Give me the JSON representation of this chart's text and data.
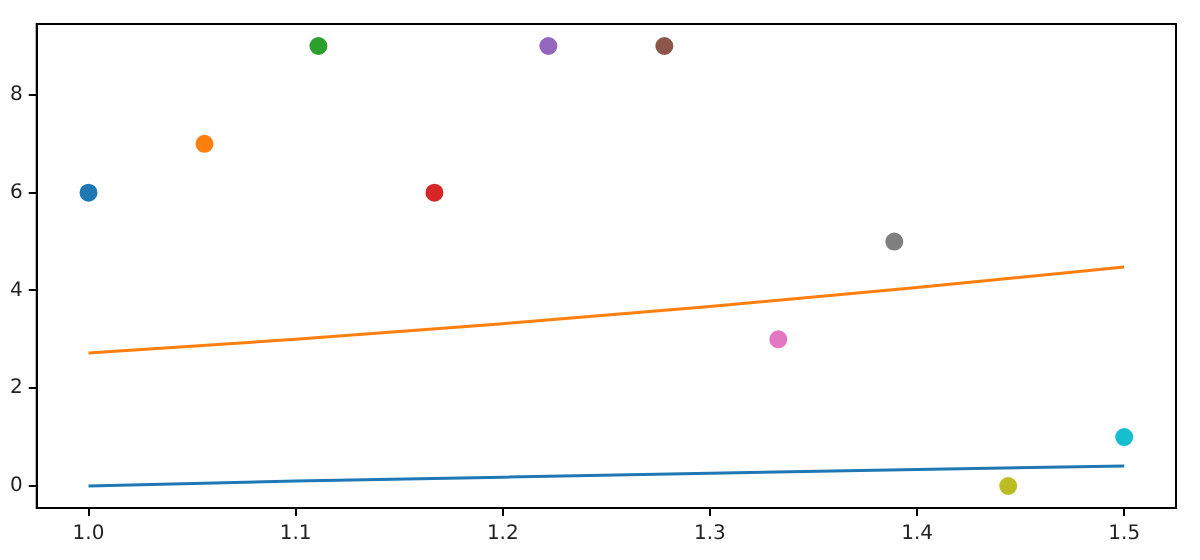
{
  "chart_data": {
    "type": "scatter",
    "xlim": [
      0.975,
      1.525
    ],
    "ylim": [
      -0.45,
      9.45
    ],
    "xticks": [
      {
        "value": 1,
        "label": "1.0"
      },
      {
        "value": 1.1,
        "label": "1.1"
      },
      {
        "value": 1.2,
        "label": "1.2"
      },
      {
        "value": 1.3,
        "label": "1.3"
      },
      {
        "value": 1.4,
        "label": "1.4"
      },
      {
        "value": 1.5,
        "label": "1.5"
      }
    ],
    "yticks": [
      0,
      2,
      4,
      6,
      8
    ],
    "grid": false,
    "legend": false,
    "marker": "circle",
    "series": [
      {
        "type": "line",
        "marker": "none",
        "color": "#1f77b4",
        "x": [
          1,
          1.1,
          1.2,
          1.3,
          1.4,
          1.5
        ],
        "values": [
          0,
          0.1,
          0.18,
          0.26,
          0.34,
          0.41
        ]
      },
      {
        "type": "line",
        "marker": "none",
        "color": "#ff7f0e",
        "x": [
          1,
          1.1,
          1.2,
          1.3,
          1.4,
          1.5
        ],
        "values": [
          2.72,
          3.0,
          3.32,
          3.67,
          4.06,
          4.48
        ]
      },
      {
        "x": [
          1,
          1.056,
          1.111,
          1.167,
          1.222,
          1.278,
          1.333,
          1.389,
          1.444,
          1.5
        ],
        "values": [
          6,
          7,
          9,
          6,
          9,
          9,
          3,
          5,
          0,
          1
        ],
        "colors": [
          "#1f77b4",
          "#ff7f0e",
          "#2ca02c",
          "#d62728",
          "#9467bd",
          "#8c564b",
          "#e377c2",
          "#7f7f7f",
          "#bcbd22",
          "#17becf"
        ]
      }
    ]
  }
}
